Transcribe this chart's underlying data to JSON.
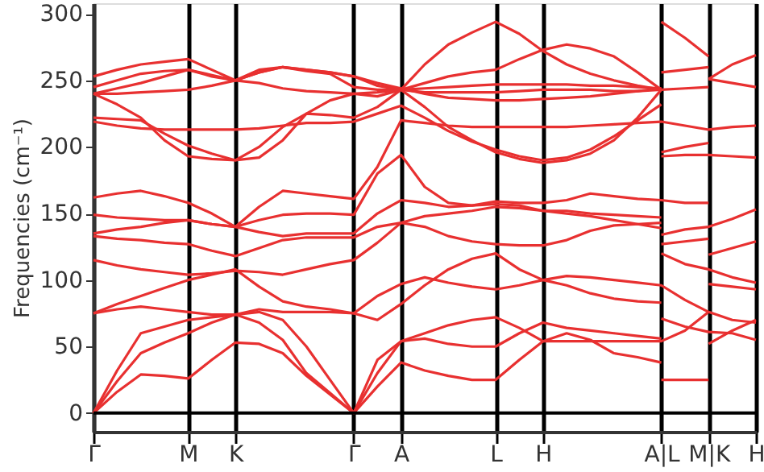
{
  "chart_data": {
    "type": "line",
    "ylabel": "Frequencies (cm⁻¹)",
    "categories": [
      "Γ",
      null,
      null,
      null,
      "M",
      null,
      "K",
      null,
      null,
      null,
      null,
      "Γ",
      null,
      "A",
      null,
      null,
      null,
      "L",
      null,
      "H",
      null,
      null,
      null,
      null,
      "A|L",
      null,
      "M|K",
      null,
      "H"
    ],
    "ylim": [
      -14,
      308
    ],
    "yticks": [
      0,
      50,
      100,
      150,
      200,
      250,
      300
    ],
    "grid": "x",
    "marker": "none",
    "line_style": "solid",
    "ref_lines": [
      {
        "axis": "y",
        "value": 0,
        "color": "#000000"
      }
    ],
    "series": [
      {
        "color": "#e83030",
        "values": [
          0,
          16,
          29,
          28,
          26,
          40,
          53,
          52,
          45,
          28,
          14,
          0,
          20,
          38,
          32,
          28,
          25,
          25,
          40,
          54,
          60,
          55,
          45,
          42,
          38,
          null,
          null,
          null,
          null
        ]
      },
      {
        "color": "#e83030",
        "values": [
          0,
          24,
          45,
          53,
          60,
          68,
          74,
          68,
          55,
          30,
          15,
          0,
          30,
          54,
          60,
          66,
          70,
          72,
          64,
          54,
          54,
          54,
          54,
          54,
          54,
          62,
          76,
          null,
          null
        ]
      },
      {
        "color": "#e83030",
        "values": [
          0,
          32,
          60,
          65,
          70,
          72,
          74,
          76,
          70,
          50,
          25,
          0,
          40,
          54,
          56,
          52,
          50,
          50,
          60,
          68,
          64,
          62,
          60,
          58,
          56,
          null,
          null,
          null,
          null
        ]
      },
      {
        "color": "#e83030",
        "values": [
          75,
          78,
          80,
          78,
          76,
          74,
          74,
          78,
          76,
          76,
          76,
          75,
          70,
          82,
          96,
          108,
          116,
          120,
          108,
          100,
          96,
          90,
          86,
          84,
          83,
          null,
          null,
          null,
          null
        ]
      },
      {
        "color": "#e83030",
        "values": [
          75,
          82,
          88,
          94,
          100,
          104,
          108,
          95,
          84,
          80,
          78,
          75,
          88,
          97,
          102,
          98,
          95,
          93,
          96,
          100,
          103,
          102,
          100,
          98,
          96,
          85,
          76,
          70,
          68
        ]
      },
      {
        "color": "#e83030",
        "values": [
          115,
          111,
          108,
          106,
          104,
          105,
          107,
          106,
          104,
          108,
          112,
          115,
          128,
          143,
          140,
          133,
          129,
          127,
          126,
          126,
          130,
          137,
          141,
          142,
          143,
          null,
          null,
          null,
          null
        ]
      },
      {
        "color": "#e83030",
        "values": [
          133,
          131,
          130,
          128,
          127,
          122,
          118,
          124,
          130,
          132,
          132,
          132,
          140,
          143,
          148,
          150,
          152,
          155,
          154,
          152,
          150,
          148,
          145,
          142,
          139,
          null,
          null,
          null,
          null
        ]
      },
      {
        "color": "#e83030",
        "values": [
          135,
          138,
          140,
          143,
          145,
          142,
          140,
          136,
          133,
          135,
          135,
          135,
          150,
          160,
          158,
          155,
          156,
          157,
          156,
          152,
          152,
          150,
          149,
          148,
          147,
          null,
          null,
          null,
          null
        ]
      },
      {
        "color": "#e83030",
        "values": [
          149,
          147,
          146,
          145,
          145,
          142,
          140,
          145,
          149,
          150,
          150,
          149,
          180,
          194,
          170,
          158,
          156,
          159,
          158,
          158,
          160,
          165,
          163,
          161,
          160,
          158,
          158,
          null,
          null
        ]
      },
      {
        "color": "#e83030",
        "values": [
          162,
          165,
          167,
          163,
          158,
          150,
          140,
          155,
          167,
          165,
          163,
          161,
          185,
          220,
          218,
          216,
          215,
          215,
          215,
          215,
          215,
          216,
          217,
          218,
          219,
          216,
          213,
          215,
          216
        ]
      },
      {
        "color": "#e83030",
        "values": [
          219,
          216,
          214,
          213,
          213,
          213,
          213,
          214,
          216,
          218,
          218,
          219,
          225,
          231,
          222,
          212,
          204,
          198,
          193,
          190,
          192,
          198,
          208,
          220,
          232,
          null,
          null,
          null,
          null
        ]
      },
      {
        "color": "#e83030",
        "values": [
          222,
          221,
          220,
          210,
          201,
          195,
          190,
          200,
          215,
          225,
          224,
          222,
          230,
          243,
          230,
          215,
          205,
          196,
          191,
          188,
          190,
          195,
          205,
          222,
          243,
          null,
          null,
          null,
          null
        ]
      },
      {
        "color": "#e83030",
        "values": [
          240,
          232,
          222,
          205,
          193,
          191,
          190,
          192,
          205,
          225,
          235,
          240,
          238,
          243,
          241,
          241,
          241,
          241,
          242,
          243,
          243,
          243,
          242,
          242,
          243,
          244,
          245,
          null,
          null
        ]
      },
      {
        "color": "#e83030",
        "values": [
          240,
          240,
          241,
          242,
          243,
          246,
          250,
          248,
          244,
          242,
          241,
          240,
          241,
          243,
          244,
          245,
          246,
          247,
          247,
          247,
          247,
          246,
          246,
          245,
          244,
          null,
          null,
          null,
          null
        ]
      },
      {
        "color": "#e83030",
        "values": [
          240,
          244,
          248,
          253,
          258,
          253,
          250,
          258,
          260,
          257,
          255,
          245,
          243,
          243,
          262,
          277,
          286,
          294,
          285,
          272,
          262,
          255,
          250,
          246,
          243,
          null,
          null,
          null,
          null
        ]
      },
      {
        "color": "#e83030",
        "values": [
          245,
          250,
          255,
          257,
          258,
          254,
          250,
          256,
          260,
          258,
          256,
          253,
          246,
          243,
          248,
          253,
          256,
          258,
          266,
          273,
          277,
          274,
          268,
          256,
          243,
          null,
          null,
          null,
          null
        ]
      },
      {
        "color": "#e83030",
        "values": [
          253,
          258,
          262,
          264,
          266,
          258,
          250,
          256,
          260,
          258,
          256,
          253,
          248,
          244,
          240,
          237,
          236,
          235,
          235,
          236,
          237,
          238,
          240,
          242,
          244,
          null,
          null,
          null,
          null
        ]
      },
      {
        "color": "#e83030",
        "values": [
          null,
          null,
          null,
          null,
          null,
          null,
          null,
          null,
          null,
          null,
          null,
          null,
          null,
          null,
          null,
          null,
          null,
          null,
          null,
          null,
          null,
          null,
          null,
          null,
          294,
          282,
          268,
          null,
          null
        ]
      },
      {
        "color": "#e83030",
        "values": [
          null,
          null,
          null,
          null,
          null,
          null,
          null,
          null,
          null,
          null,
          null,
          null,
          null,
          null,
          null,
          null,
          null,
          null,
          null,
          null,
          null,
          null,
          null,
          null,
          256,
          258,
          260,
          null,
          null
        ]
      },
      {
        "color": "#e83030",
        "values": [
          null,
          null,
          null,
          null,
          null,
          null,
          null,
          null,
          null,
          null,
          null,
          null,
          null,
          null,
          null,
          null,
          null,
          null,
          null,
          null,
          null,
          null,
          null,
          null,
          196,
          200,
          203,
          null,
          null
        ]
      },
      {
        "color": "#e83030",
        "values": [
          null,
          null,
          null,
          null,
          null,
          null,
          null,
          null,
          null,
          null,
          null,
          null,
          null,
          null,
          null,
          null,
          null,
          null,
          null,
          null,
          null,
          null,
          null,
          null,
          127,
          129,
          131,
          null,
          null
        ]
      },
      {
        "color": "#e83030",
        "values": [
          null,
          null,
          null,
          null,
          null,
          null,
          null,
          null,
          null,
          null,
          null,
          null,
          null,
          null,
          null,
          null,
          null,
          null,
          null,
          null,
          null,
          null,
          null,
          null,
          25,
          25,
          25,
          null,
          null
        ]
      },
      {
        "color": "#e83030",
        "values": [
          null,
          null,
          null,
          null,
          null,
          null,
          null,
          null,
          null,
          null,
          null,
          null,
          null,
          null,
          null,
          null,
          null,
          null,
          null,
          null,
          null,
          null,
          null,
          null,
          193,
          194,
          194,
          193,
          192
        ]
      },
      {
        "color": "#e83030",
        "values": [
          null,
          null,
          null,
          null,
          null,
          null,
          null,
          null,
          null,
          null,
          null,
          null,
          null,
          null,
          null,
          null,
          null,
          null,
          null,
          null,
          null,
          null,
          null,
          null,
          134,
          138,
          140,
          146,
          153
        ]
      },
      {
        "color": "#e83030",
        "values": [
          null,
          null,
          null,
          null,
          null,
          null,
          null,
          null,
          null,
          null,
          null,
          null,
          null,
          null,
          null,
          null,
          null,
          null,
          null,
          null,
          null,
          null,
          null,
          null,
          120,
          112,
          108,
          102,
          98
        ]
      },
      {
        "color": "#e83030",
        "values": [
          null,
          null,
          null,
          null,
          null,
          null,
          null,
          null,
          null,
          null,
          null,
          null,
          null,
          null,
          null,
          null,
          null,
          null,
          null,
          null,
          null,
          null,
          null,
          null,
          71,
          65,
          61,
          60,
          55
        ]
      },
      {
        "color": "#e83030",
        "values": [
          null,
          null,
          null,
          null,
          null,
          null,
          null,
          null,
          null,
          null,
          null,
          null,
          null,
          null,
          null,
          null,
          null,
          null,
          null,
          null,
          null,
          null,
          null,
          null,
          null,
          null,
          251,
          262,
          269
        ]
      },
      {
        "color": "#e83030",
        "values": [
          null,
          null,
          null,
          null,
          null,
          null,
          null,
          null,
          null,
          null,
          null,
          null,
          null,
          null,
          null,
          null,
          null,
          null,
          null,
          null,
          null,
          null,
          null,
          null,
          null,
          null,
          251,
          248,
          245
        ]
      },
      {
        "color": "#e83030",
        "values": [
          null,
          null,
          null,
          null,
          null,
          null,
          null,
          null,
          null,
          null,
          null,
          null,
          null,
          null,
          null,
          null,
          null,
          null,
          null,
          null,
          null,
          null,
          null,
          null,
          null,
          null,
          119,
          124,
          129
        ]
      },
      {
        "color": "#e83030",
        "values": [
          null,
          null,
          null,
          null,
          null,
          null,
          null,
          null,
          null,
          null,
          null,
          null,
          null,
          null,
          null,
          null,
          null,
          null,
          null,
          null,
          null,
          null,
          null,
          null,
          null,
          null,
          97,
          95,
          93
        ]
      },
      {
        "color": "#e83030",
        "values": [
          null,
          null,
          null,
          null,
          null,
          null,
          null,
          null,
          null,
          null,
          null,
          null,
          null,
          null,
          null,
          null,
          null,
          null,
          null,
          null,
          null,
          null,
          null,
          null,
          null,
          null,
          52,
          62,
          70
        ]
      }
    ]
  }
}
